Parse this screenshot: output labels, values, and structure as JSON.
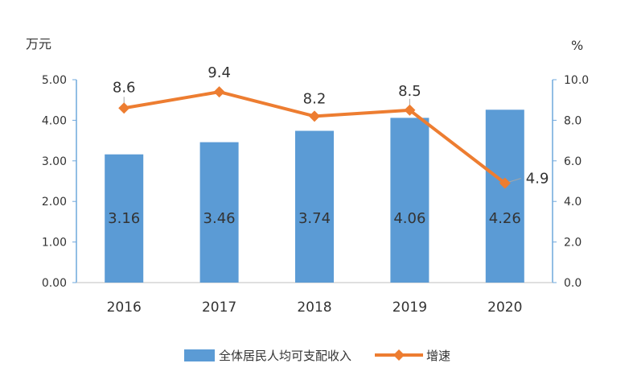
{
  "chart_data": {
    "type": "bar+line",
    "categories": [
      "2016",
      "2017",
      "2018",
      "2019",
      "2020"
    ],
    "series": [
      {
        "name": "全体居民人均可支配收入",
        "type": "bar",
        "axis": "left",
        "values": [
          3.16,
          3.46,
          3.74,
          4.06,
          4.26
        ],
        "labels": [
          "3.16",
          "3.46",
          "3.74",
          "4.06",
          "4.26"
        ],
        "color": "#5B9BD5"
      },
      {
        "name": "增速",
        "type": "line",
        "axis": "right",
        "values": [
          8.6,
          9.4,
          8.2,
          8.5,
          4.9
        ],
        "labels": [
          "8.6",
          "9.4",
          "8.2",
          "8.5",
          "4.9"
        ],
        "color": "#ED7D31",
        "marker": "diamond"
      }
    ],
    "left_axis": {
      "unit": "万元",
      "ylim": [
        0,
        5
      ],
      "ticks": [
        0,
        1,
        2,
        3,
        4,
        5
      ],
      "tick_labels": [
        "0.00",
        "1.00",
        "2.00",
        "3.00",
        "4.00",
        "5.00"
      ]
    },
    "right_axis": {
      "unit": "%",
      "ylim": [
        0,
        10
      ],
      "ticks": [
        0,
        2,
        4,
        6,
        8,
        10
      ],
      "tick_labels": [
        "0.0",
        "2.0",
        "4.0",
        "6.0",
        "8.0",
        "10.0"
      ]
    },
    "legend_position": "bottom",
    "grid": false
  }
}
